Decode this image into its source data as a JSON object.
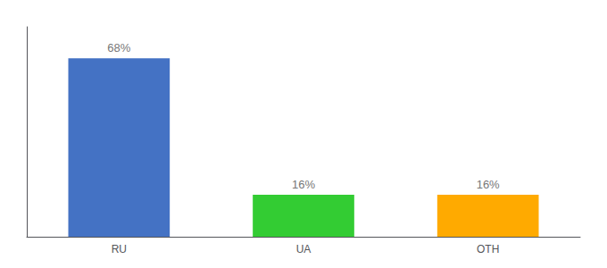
{
  "chart_data": {
    "type": "bar",
    "categories": [
      "RU",
      "UA",
      "OTH"
    ],
    "values": [
      68,
      16,
      16
    ],
    "value_labels": [
      "68%",
      "16%",
      "16%"
    ],
    "colors": [
      "#4472c4",
      "#33cc33",
      "#ffaa00"
    ],
    "ylim": [
      0,
      80
    ],
    "tick_labels": "x",
    "grid": false,
    "data_labels": true
  }
}
